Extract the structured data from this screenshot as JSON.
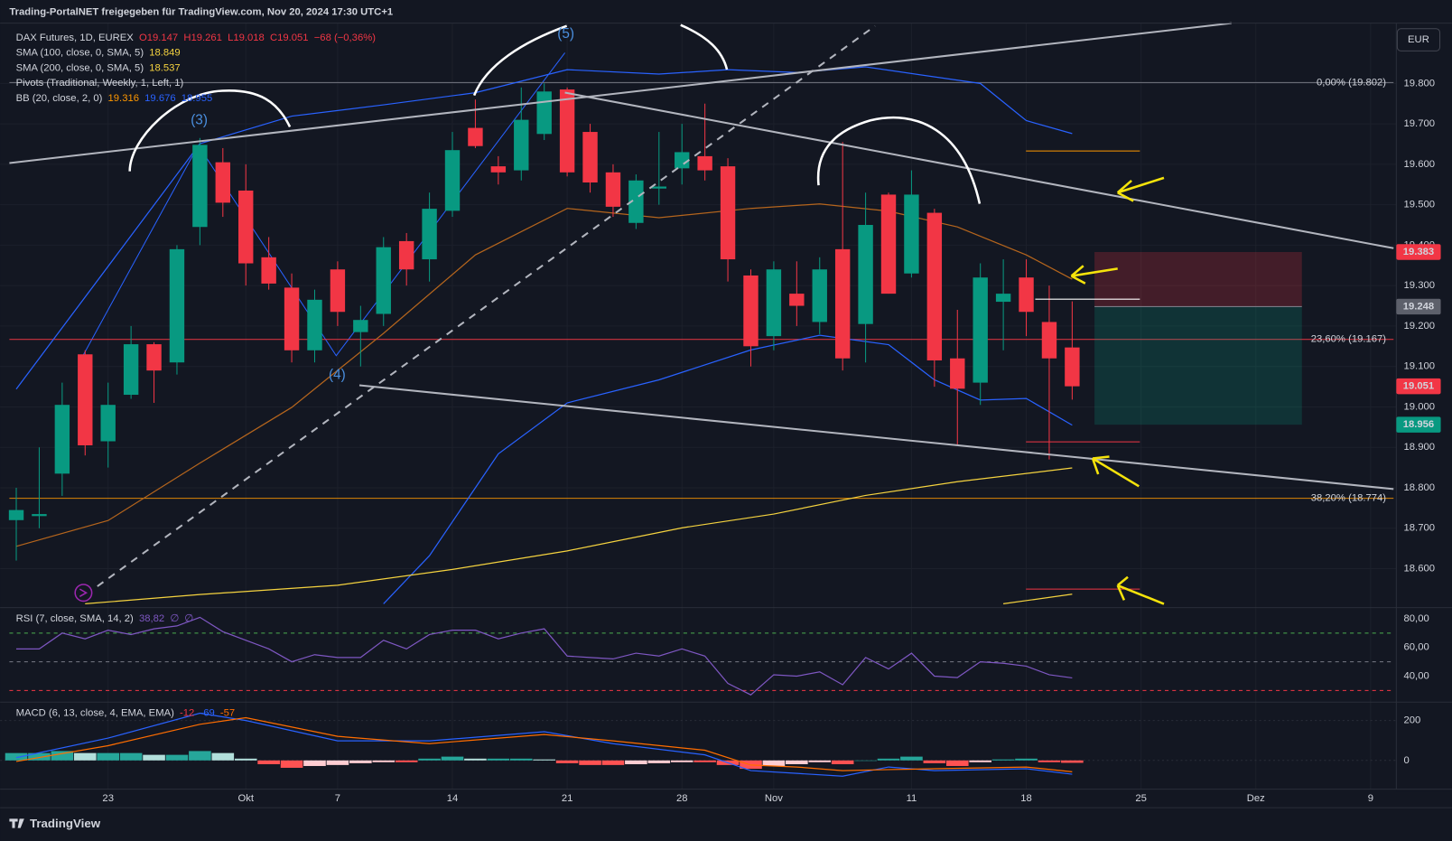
{
  "chart_data": {
    "type": "candlestick",
    "title": "Trading-PortalNET freigegeben für TradingView.com, Nov 20, 2024 17:30 UTC+1",
    "symbol": "DAX Futures, 1D, EUREX",
    "ohlc_legend": [
      "O19.147",
      "H19.261",
      "L19.018",
      "C19.051",
      "−68 (−0,36%)"
    ],
    "currency": "EUR",
    "legend": [
      {
        "name": "SMA (100, close, 0, SMA, 5)",
        "values": [
          "18.849"
        ],
        "colors": [
          "#f5d33f"
        ]
      },
      {
        "name": "SMA (200, close, 0, SMA, 5)",
        "values": [
          "18.537"
        ],
        "colors": [
          "#f5d33f"
        ]
      },
      {
        "name": "Pivots (Traditional, Weekly, 1, Left, 1)"
      },
      {
        "name": "BB (20, close, 2, 0)",
        "values": [
          "19.316",
          "19.676",
          "18.955"
        ],
        "colors": [
          "#ff9800",
          "#2962ff",
          "#2962ff"
        ]
      }
    ],
    "x": [
      0,
      1,
      2,
      3,
      4,
      5,
      6,
      7,
      8,
      9,
      10,
      11,
      12,
      13,
      14,
      15,
      16,
      17,
      18,
      19,
      20,
      21,
      22,
      23,
      24,
      25,
      26,
      27,
      28,
      29,
      30,
      31,
      32,
      33,
      34,
      35,
      36,
      37,
      38,
      39,
      40,
      41,
      42,
      43,
      44,
      45,
      46
    ],
    "open": [
      18720,
      18730,
      18835,
      19130,
      18915,
      19030,
      19155,
      19110,
      19445,
      19605,
      19535,
      19370,
      19295,
      19140,
      19340,
      19185,
      19230,
      19410,
      19365,
      19485,
      19690,
      19595,
      19585,
      19675,
      19785,
      19680,
      19580,
      19455,
      19540,
      19590,
      19620,
      19595,
      19325,
      19175,
      19280,
      19210,
      19390,
      19205,
      19525,
      19330,
      19480,
      19120,
      19060,
      19260,
      19320,
      19210,
      19147
    ],
    "high": [
      18800,
      18900,
      19060,
      19140,
      19060,
      19200,
      19160,
      19400,
      19665,
      19640,
      19600,
      19420,
      19330,
      19290,
      19360,
      19250,
      19420,
      19430,
      19530,
      19680,
      19760,
      19620,
      19790,
      19800,
      19790,
      19700,
      19600,
      19575,
      19680,
      19700,
      19750,
      19615,
      19340,
      19360,
      19360,
      19370,
      19655,
      19530,
      19530,
      19585,
      19490,
      19240,
      19355,
      19365,
      19365,
      19300,
      19261
    ],
    "low": [
      18620,
      18700,
      18780,
      18880,
      18850,
      19020,
      19010,
      19080,
      19400,
      19470,
      19300,
      19290,
      19110,
      19110,
      19200,
      19100,
      19200,
      19300,
      19310,
      19470,
      19640,
      19550,
      19560,
      19660,
      19570,
      19530,
      19470,
      19440,
      19500,
      19550,
      19560,
      19310,
      19100,
      19140,
      19200,
      19180,
      19090,
      19110,
      19280,
      19320,
      19050,
      18905,
      19005,
      19140,
      19175,
      18870,
      19018
    ],
    "close": [
      18745,
      18735,
      19005,
      18905,
      19005,
      19155,
      19090,
      19390,
      19648,
      19505,
      19355,
      19305,
      19140,
      19265,
      19235,
      19215,
      19395,
      19340,
      19490,
      19635,
      19645,
      19580,
      19710,
      19780,
      19580,
      19555,
      19495,
      19560,
      19545,
      19630,
      19585,
      19365,
      19150,
      19340,
      19250,
      19340,
      19120,
      19450,
      19280,
      19525,
      19115,
      19045,
      19320,
      19280,
      19235,
      19120,
      19051
    ],
    "up_color": "#089981",
    "down_color": "#f23645",
    "xlim": [
      -0.3,
      60
    ],
    "xticks": [
      {
        "value": 4,
        "label": "23"
      },
      {
        "value": 10,
        "label": "Okt"
      },
      {
        "value": 14,
        "label": "7"
      },
      {
        "value": 19,
        "label": "14"
      },
      {
        "value": 24,
        "label": "21"
      },
      {
        "value": 29,
        "label": "28"
      },
      {
        "value": 33,
        "label": "Nov"
      },
      {
        "value": 39,
        "label": "11"
      },
      {
        "value": 44,
        "label": "18"
      },
      {
        "value": 49,
        "label": "25"
      },
      {
        "value": 54,
        "label": "Dez"
      },
      {
        "value": 59,
        "label": "9"
      }
    ],
    "ylim": [
      18506,
      19949
    ],
    "yticks": [
      {
        "value": 18600,
        "label": "18.600"
      },
      {
        "value": 18700,
        "label": "18.700"
      },
      {
        "value": 18800,
        "label": "18.800"
      },
      {
        "value": 18900,
        "label": "18.900"
      },
      {
        "value": 19000,
        "label": "19.000"
      },
      {
        "value": 19100,
        "label": "19.100"
      },
      {
        "value": 19200,
        "label": "19.200"
      },
      {
        "value": 19300,
        "label": "19.300"
      },
      {
        "value": 19400,
        "label": "19.400"
      },
      {
        "value": 19500,
        "label": "19.500"
      },
      {
        "value": 19600,
        "label": "19.600"
      },
      {
        "value": 19700,
        "label": "19.700"
      },
      {
        "value": 19800,
        "label": "19.800"
      }
    ],
    "grid": true,
    "overlays": [
      {
        "color": "#b5651d",
        "x": [
          0,
          4,
          8,
          12,
          16,
          20,
          24,
          28,
          32,
          35,
          38,
          41,
          44,
          46
        ],
        "values": [
          18655,
          18719,
          18861,
          18999,
          19182,
          19376,
          19491,
          19468,
          19491,
          19502,
          19484,
          19445,
          19376,
          19316
        ]
      },
      {
        "color": "#2962ff",
        "x": [
          0,
          8,
          12,
          16,
          20,
          24,
          28,
          31,
          34,
          37,
          42,
          44,
          46
        ],
        "values": [
          19044,
          19651,
          19719,
          19747,
          19777,
          19834,
          19823,
          19834,
          19827,
          19841,
          19800,
          19708,
          19676
        ]
      },
      {
        "color": "#2962ff",
        "x": [
          16,
          18,
          21,
          24,
          28,
          32,
          35,
          38,
          40,
          42,
          44,
          46
        ],
        "values": [
          18513,
          18632,
          18884,
          19010,
          19067,
          19141,
          19177,
          19154,
          19067,
          19017,
          19021,
          18955
        ]
      },
      {
        "color": "#f5d33f",
        "x": [
          3,
          8,
          14,
          19,
          24,
          29,
          33,
          37,
          41,
          46
        ],
        "values": [
          18513,
          18536,
          18559,
          18598,
          18644,
          18701,
          18735,
          18781,
          18815,
          18849
        ]
      },
      {
        "color": "#f5d33f",
        "x": [
          43,
          46
        ],
        "values": [
          18513,
          18537
        ]
      }
    ],
    "fib_levels": [
      {
        "value": 19802,
        "label": "0,00% (19.802)",
        "color": "#787b86"
      },
      {
        "value": 19167,
        "label": "23,60% (19.167)",
        "color": "#f23645"
      },
      {
        "value": 18774,
        "label": "38,20% (18.774)",
        "color": "#ff9800"
      }
    ],
    "price_markers": [
      {
        "value": 19383,
        "label": "19.383",
        "color": "#f23645"
      },
      {
        "value": 19248,
        "label": "19.248",
        "color": "#5d606b"
      },
      {
        "value": 19051,
        "label": "19.051",
        "color": "#f23645"
      },
      {
        "value": 18956,
        "label": "18.956",
        "color": "#089981"
      }
    ],
    "wave_labels": [
      "(3)",
      "(4)",
      "(5)"
    ],
    "panes": [
      {
        "type": "line",
        "title": "RSI (7, close, SMA, 14, 2)",
        "legend_values": [
          "38,82",
          "∅",
          "∅"
        ],
        "color": "#7e57c2",
        "x": [
          0,
          1,
          2,
          3,
          4,
          5,
          6,
          7,
          8,
          9,
          10,
          11,
          12,
          13,
          14,
          15,
          16,
          17,
          18,
          19,
          20,
          21,
          22,
          23,
          24,
          25,
          26,
          27,
          28,
          29,
          30,
          31,
          32,
          33,
          34,
          35,
          36,
          37,
          38,
          39,
          40,
          41,
          42,
          43,
          44,
          45,
          46
        ],
        "values": [
          59,
          59,
          70,
          66,
          72,
          69,
          73,
          75,
          81,
          71,
          65,
          59,
          50,
          55,
          53,
          53,
          65,
          59,
          69,
          72,
          72,
          66,
          70,
          73,
          54,
          53,
          52,
          56,
          54,
          59,
          54,
          35,
          27,
          41,
          40,
          43,
          34,
          53,
          45,
          56,
          40,
          39,
          50,
          49,
          47,
          41,
          38.82
        ],
        "ylim": [
          22.6,
          87.1
        ],
        "yticks": [
          {
            "value": 40,
            "label": "40,00"
          },
          {
            "value": 60,
            "label": "60,00"
          },
          {
            "value": 80,
            "label": "80,00"
          }
        ],
        "levels": [
          {
            "value": 70,
            "color": "#4caf50"
          },
          {
            "value": 50,
            "color": "#787b86"
          },
          {
            "value": 30,
            "color": "#f23645"
          }
        ]
      },
      {
        "type": "macd",
        "title": "MACD (6, 13, close, 4, EMA, EMA)",
        "legend_values": [
          "-12",
          "-69",
          "-57"
        ],
        "legend_colors": [
          "#f23645",
          "#2962ff",
          "#ff6d00"
        ],
        "x": [
          0,
          1,
          2,
          3,
          4,
          5,
          6,
          7,
          8,
          9,
          10,
          11,
          12,
          13,
          14,
          15,
          16,
          17,
          18,
          19,
          20,
          21,
          22,
          23,
          24,
          25,
          26,
          27,
          28,
          29,
          30,
          31,
          32,
          33,
          34,
          35,
          36,
          37,
          38,
          39,
          40,
          41,
          42,
          43,
          44,
          45,
          46
        ],
        "histogram": [
          37,
          37,
          47,
          37,
          37,
          37,
          28,
          28,
          47,
          37,
          9,
          -19,
          -37,
          -28,
          -23,
          -14,
          -9,
          -9,
          9,
          19,
          9,
          9,
          9,
          5,
          -14,
          -23,
          -23,
          -19,
          -14,
          -9,
          -9,
          -23,
          -42,
          -28,
          -19,
          -9,
          -19,
          0,
          9,
          19,
          -14,
          -28,
          -9,
          5,
          9,
          -9,
          -12
        ],
        "series": [
          {
            "color": "#2962ff",
            "x": [
              0,
              4,
              8,
              10,
              14,
              18,
              23,
              26,
              30,
              32,
              34,
              36,
              38,
              40,
              44,
              46
            ],
            "values": [
              14,
              112,
              237,
              200,
              98,
              98,
              144,
              84,
              28,
              -51,
              -65,
              -79,
              -33,
              -51,
              -42,
              -69
            ]
          },
          {
            "color": "#ff6d00",
            "x": [
              0,
              4,
              8,
              10,
              14,
              18,
              23,
              26,
              30,
              32,
              34,
              36,
              38,
              40,
              44,
              46
            ],
            "values": [
              -5,
              74,
              181,
              214,
              121,
              84,
              130,
              98,
              51,
              -23,
              -33,
              -51,
              -46,
              -42,
              -33,
              -57
            ]
          }
        ],
        "ylim": [
          -144,
          288
        ],
        "yticks": [
          0,
          200
        ]
      }
    ],
    "brand": "TradingView"
  }
}
